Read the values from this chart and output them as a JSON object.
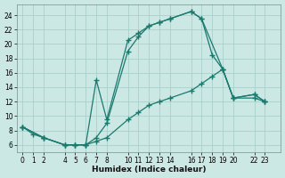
{
  "xlabel": "Humidex (Indice chaleur)",
  "bg_color": "#cce8e4",
  "line_color": "#1a7a6e",
  "grid_color": "#aacfcb",
  "xticks": [
    0,
    1,
    2,
    4,
    5,
    6,
    7,
    8,
    10,
    11,
    12,
    13,
    14,
    16,
    17,
    18,
    19,
    20,
    22,
    23
  ],
  "yticks": [
    6,
    8,
    10,
    12,
    14,
    16,
    18,
    20,
    22,
    24
  ],
  "xlim": [
    -0.5,
    24.5
  ],
  "ylim": [
    5.0,
    25.5
  ],
  "curve1_x": [
    0,
    2,
    4,
    5,
    6,
    7,
    8,
    10,
    11,
    12,
    13,
    14,
    16,
    17,
    19,
    20,
    22,
    23
  ],
  "curve1_y": [
    8.5,
    7.0,
    6.0,
    6.0,
    6.0,
    15.0,
    9.5,
    20.5,
    21.5,
    22.5,
    23.0,
    23.5,
    24.5,
    23.5,
    16.5,
    12.5,
    13.0,
    12.0
  ],
  "curve2_x": [
    0,
    1,
    2,
    4,
    5,
    6,
    7,
    8,
    10,
    11,
    12,
    13,
    14,
    16,
    17,
    18,
    19,
    20,
    22,
    23
  ],
  "curve2_y": [
    8.5,
    7.5,
    7.0,
    6.0,
    6.0,
    6.0,
    7.0,
    9.0,
    19.0,
    21.0,
    22.5,
    23.0,
    23.5,
    24.5,
    23.5,
    18.5,
    16.5,
    12.5,
    13.0,
    12.0
  ],
  "curve3_x": [
    0,
    2,
    4,
    5,
    6,
    7,
    8,
    10,
    11,
    12,
    13,
    14,
    16,
    17,
    18,
    19,
    20,
    22,
    23
  ],
  "curve3_y": [
    8.5,
    7.0,
    6.0,
    6.0,
    6.0,
    6.5,
    7.0,
    9.5,
    10.5,
    11.5,
    12.0,
    12.5,
    13.5,
    14.5,
    15.5,
    16.5,
    12.5,
    12.5,
    12.0
  ]
}
